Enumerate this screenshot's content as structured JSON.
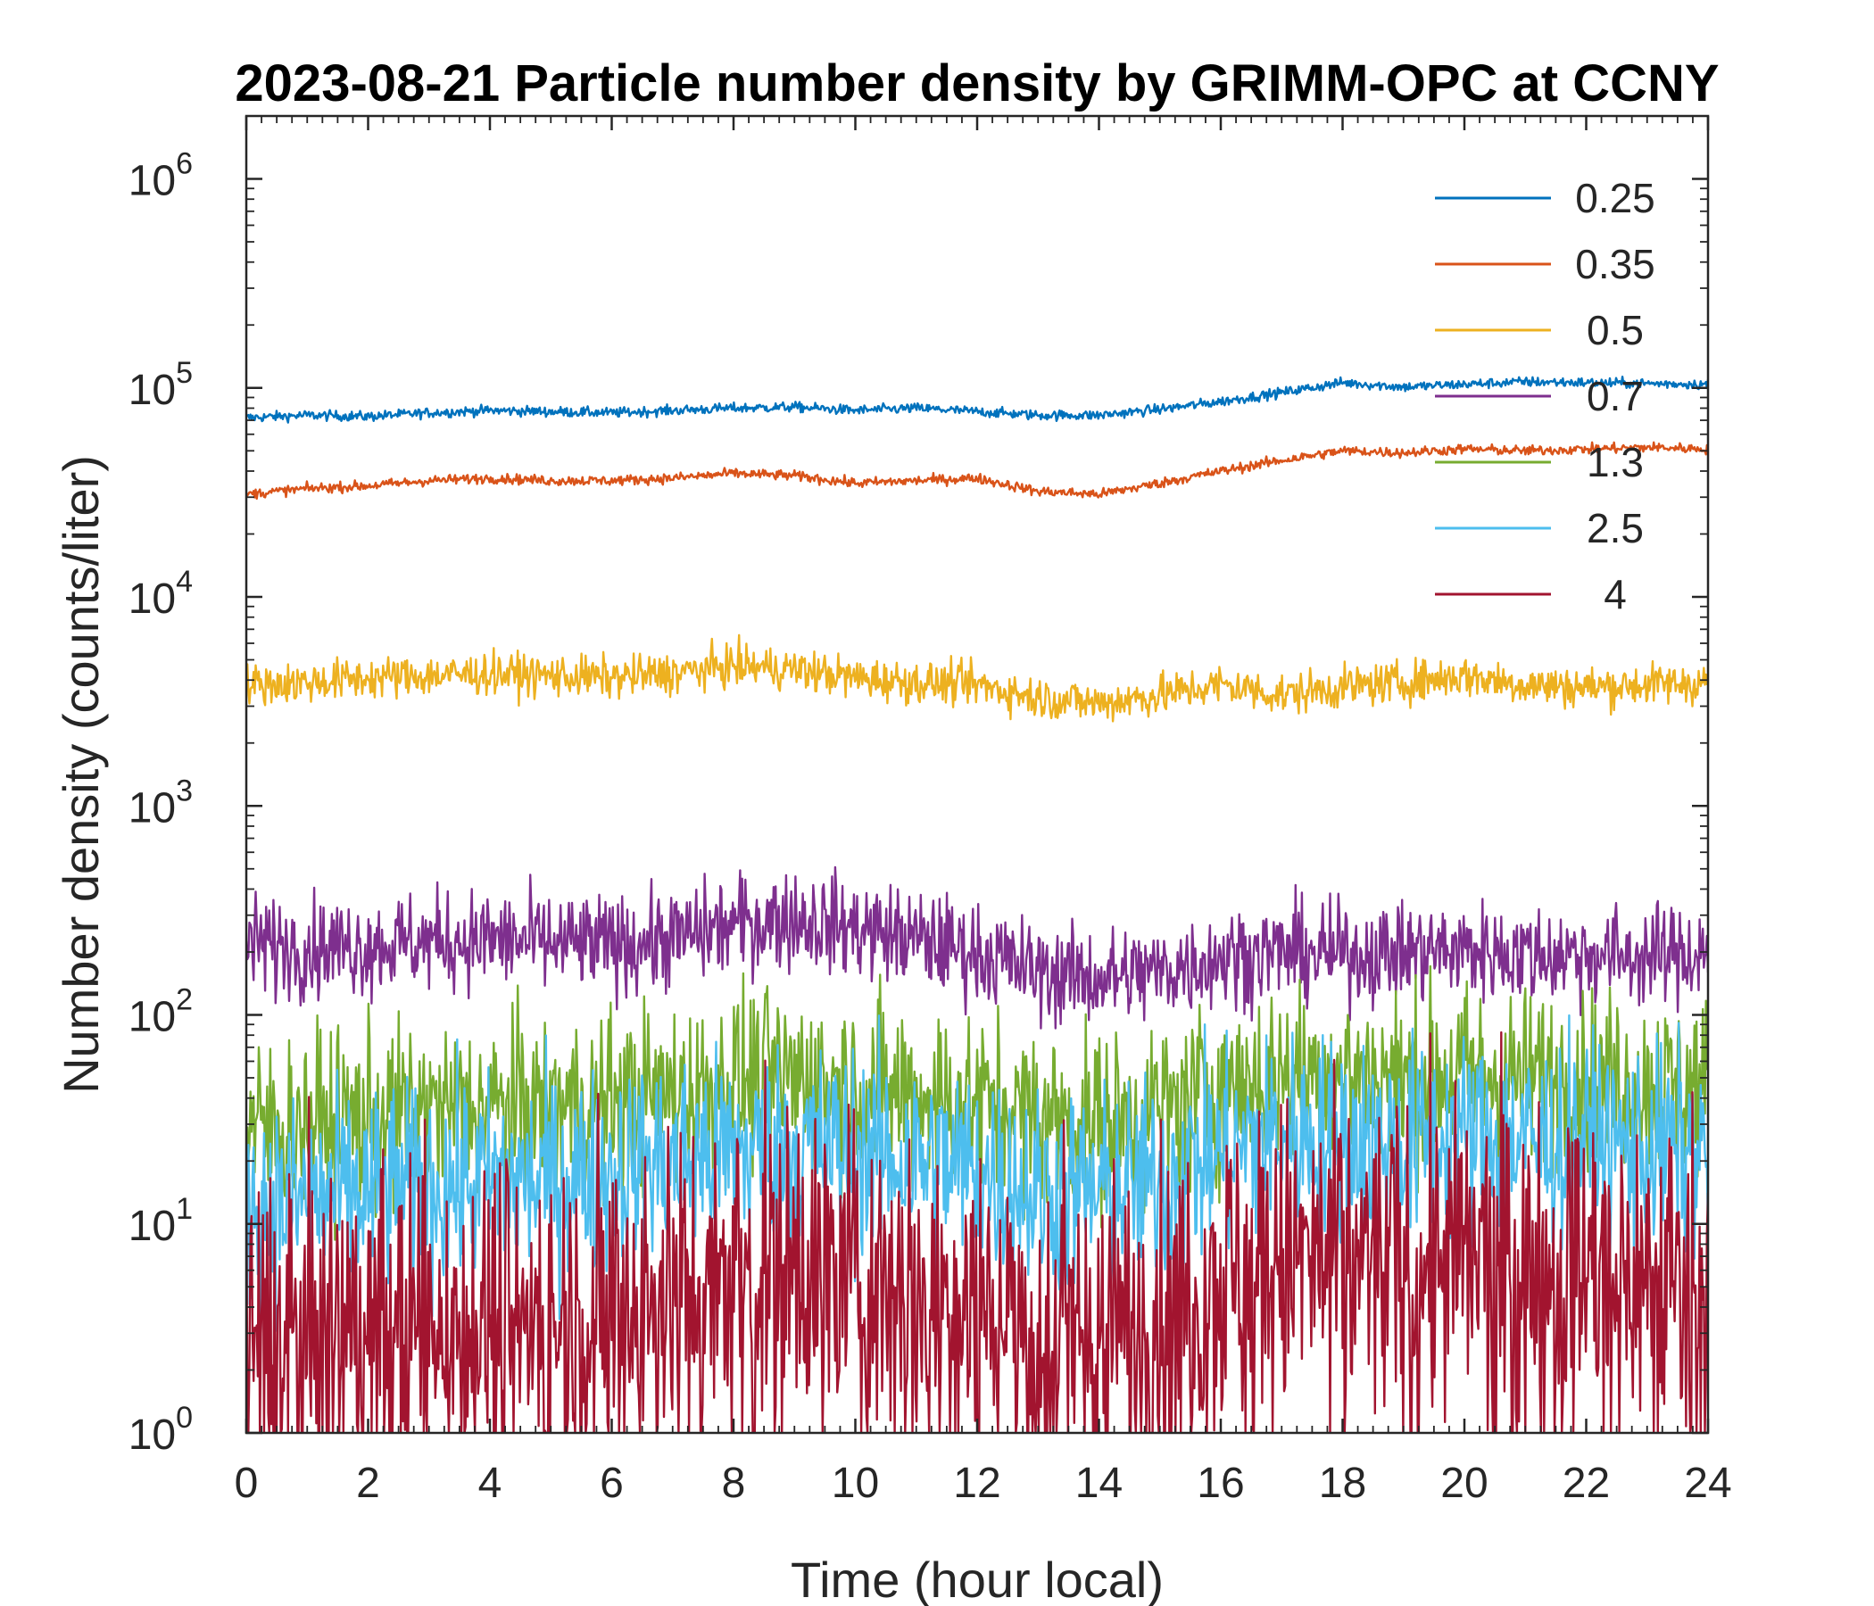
{
  "chart_data": {
    "type": "line",
    "title": "2023-08-21 Particle number density by GRIMM-OPC at CCNY",
    "xlabel": "Time (hour local)",
    "ylabel": "Number density (counts/liter)",
    "xlim": [
      0,
      24
    ],
    "ylim": [
      1,
      2000000
    ],
    "yscale": "log",
    "x_ticks": [
      {
        "value": 0,
        "label": "0"
      },
      {
        "value": 2,
        "label": "2"
      },
      {
        "value": 4,
        "label": "4"
      },
      {
        "value": 6,
        "label": "6"
      },
      {
        "value": 8,
        "label": "8"
      },
      {
        "value": 10,
        "label": "10"
      },
      {
        "value": 12,
        "label": "12"
      },
      {
        "value": 14,
        "label": "14"
      },
      {
        "value": 16,
        "label": "16"
      },
      {
        "value": 18,
        "label": "18"
      },
      {
        "value": 20,
        "label": "20"
      },
      {
        "value": 22,
        "label": "22"
      },
      {
        "value": 24,
        "label": "24"
      }
    ],
    "y_ticks": [
      {
        "value": 1,
        "base": "10",
        "exp": "0"
      },
      {
        "value": 10,
        "base": "10",
        "exp": "1"
      },
      {
        "value": 100,
        "base": "10",
        "exp": "2"
      },
      {
        "value": 1000,
        "base": "10",
        "exp": "3"
      },
      {
        "value": 10000,
        "base": "10",
        "exp": "4"
      },
      {
        "value": 100000,
        "base": "10",
        "exp": "5"
      },
      {
        "value": 1000000,
        "base": "10",
        "exp": "6"
      }
    ],
    "legend_position": "top-right",
    "grid": false,
    "x": [
      0,
      1,
      2,
      3,
      4,
      5,
      6,
      7,
      8,
      9,
      10,
      11,
      12,
      13,
      14,
      15,
      16,
      17,
      18,
      19,
      20,
      21,
      22,
      23,
      24
    ],
    "series": [
      {
        "name": "0.25",
        "color": "#0072BD",
        "noise": 0.012,
        "values": [
          72000,
          74000,
          73000,
          76000,
          78000,
          77000,
          76000,
          78000,
          80000,
          81000,
          78000,
          80000,
          77000,
          74000,
          74000,
          79000,
          86000,
          95000,
          106000,
          101000,
          104000,
          107000,
          106000,
          105000,
          104000
        ]
      },
      {
        "name": "0.35",
        "color": "#D95319",
        "noise": 0.012,
        "values": [
          31000,
          33000,
          34000,
          36000,
          37000,
          36000,
          36000,
          37000,
          39000,
          38000,
          35000,
          36000,
          37000,
          32000,
          31000,
          35000,
          40000,
          45000,
          50000,
          49000,
          51000,
          50000,
          51000,
          52000,
          51000
        ]
      },
      {
        "name": "0.5",
        "color": "#EDB120",
        "noise": 0.05,
        "values": [
          3800,
          3900,
          4100,
          4200,
          4300,
          4200,
          4100,
          4300,
          4700,
          4500,
          4100,
          3900,
          3800,
          3300,
          3100,
          3400,
          3800,
          3400,
          3700,
          3900,
          4200,
          3800,
          3700,
          3800,
          3900
        ]
      },
      {
        "name": "0.7",
        "color": "#7E2F8E",
        "noise": 0.12,
        "values": [
          220,
          210,
          215,
          225,
          230,
          220,
          215,
          230,
          270,
          290,
          260,
          230,
          200,
          160,
          150,
          160,
          190,
          200,
          195,
          200,
          205,
          195,
          195,
          190,
          200
        ]
      },
      {
        "name": "1.3",
        "color": "#77AC30",
        "noise": 0.22,
        "values": [
          28,
          30,
          32,
          34,
          36,
          36,
          38,
          42,
          48,
          50,
          46,
          42,
          38,
          32,
          30,
          34,
          44,
          52,
          52,
          50,
          52,
          50,
          48,
          46,
          45
        ]
      },
      {
        "name": "2.5",
        "color": "#4DBEEE",
        "noise": 0.25,
        "values": [
          12,
          13,
          14,
          15,
          16,
          16,
          18,
          20,
          22,
          24,
          22,
          20,
          18,
          14,
          14,
          16,
          22,
          26,
          26,
          24,
          26,
          25,
          24,
          23,
          22
        ]
      },
      {
        "name": "4",
        "color": "#A2142F",
        "noise": 0.4,
        "values": [
          2.8,
          3,
          3,
          3.2,
          3.5,
          3.5,
          3.8,
          5,
          6,
          6.2,
          5.5,
          5,
          4.5,
          3.2,
          3,
          3.5,
          5.5,
          6.5,
          6.5,
          6.2,
          6.5,
          6.2,
          6,
          5.8,
          5.5
        ]
      }
    ]
  }
}
